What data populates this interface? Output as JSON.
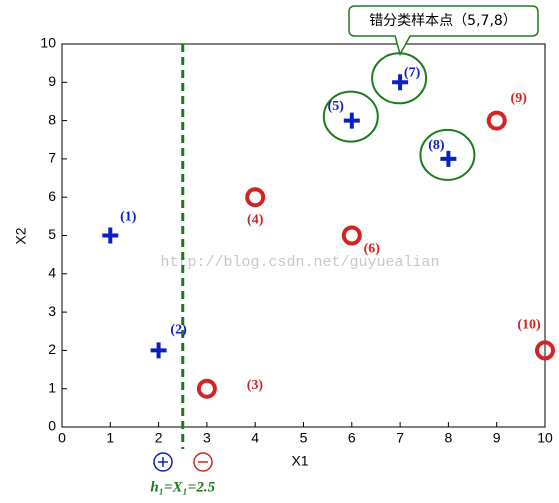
{
  "chart_data": {
    "type": "scatter",
    "xlabel": "X1",
    "ylabel": "X2",
    "xlim": [
      0,
      10
    ],
    "ylim": [
      0,
      10
    ],
    "xticks": [
      0,
      1,
      2,
      3,
      4,
      5,
      6,
      7,
      8,
      9,
      10
    ],
    "yticks": [
      0,
      1,
      2,
      3,
      4,
      5,
      6,
      7,
      8,
      9,
      10
    ],
    "series": [
      {
        "marker": "plus",
        "color": "#0a1fc4",
        "x": [
          1,
          2,
          6,
          7,
          8
        ],
        "y": [
          5,
          2,
          8,
          9,
          7
        ],
        "labels": [
          "(1)",
          "(2)",
          "(5)",
          "(7)",
          "(8)"
        ]
      },
      {
        "marker": "circle",
        "color": "#d42323",
        "x": [
          3,
          4,
          6,
          9,
          10
        ],
        "y": [
          1,
          6,
          5,
          8,
          2
        ],
        "labels": [
          "(3)",
          "(4)",
          "(6)",
          "(9)",
          "(10)"
        ]
      }
    ],
    "highlight": {
      "color": "#1e7a1e",
      "x": [
        6,
        7,
        8
      ],
      "y": [
        8,
        9,
        7
      ],
      "text": "错分类样本点（5,7,8）"
    },
    "threshold": {
      "value": 2.5,
      "label": "h₁=X₁=2.5",
      "color": "#1e7a1e"
    },
    "watermark": "http://blog.csdn.net/guyuealian"
  }
}
